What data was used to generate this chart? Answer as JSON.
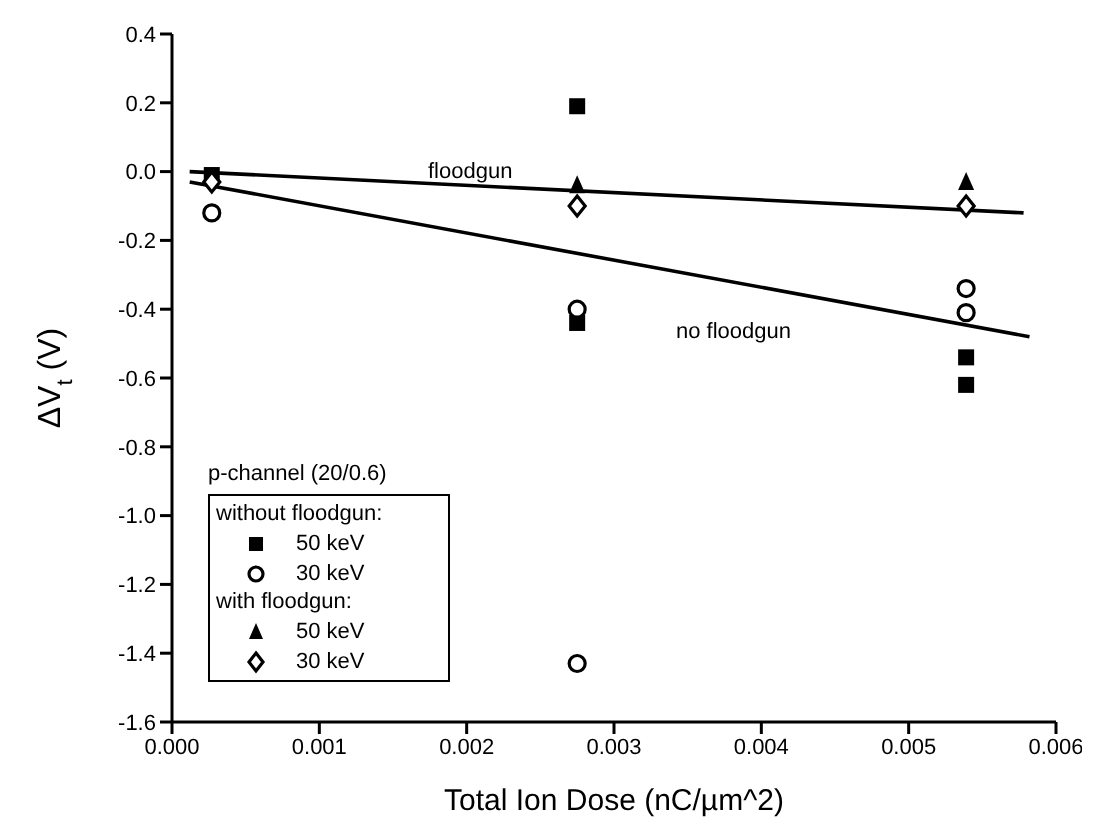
{
  "chart_data": {
    "type": "scatter",
    "xlabel": "Total Ion Dose (nC/µm^2)",
    "ylabel": "ΔV$_{t}$ (V)",
    "legend_title": "p-channel (20/0.6)",
    "xlim": [
      0,
      0.006
    ],
    "xticks": [
      {
        "value": 0,
        "label": "0.000"
      },
      {
        "value": 0.001,
        "label": "0.001"
      },
      {
        "value": 0.002,
        "label": "0.002"
      },
      {
        "value": 0.003,
        "label": "0.003"
      },
      {
        "value": 0.004,
        "label": "0.004"
      },
      {
        "value": 0.005,
        "label": "0.005"
      },
      {
        "value": 0.006,
        "label": "0.006"
      }
    ],
    "ylim": [
      -1.6,
      0.4
    ],
    "yticks": [
      {
        "value": 0.4,
        "label": "0.4"
      },
      {
        "value": 0.2,
        "label": "0.2"
      },
      {
        "value": 0,
        "label": "0.0"
      },
      {
        "value": -0.2,
        "label": "-0.2"
      },
      {
        "value": -0.4,
        "label": "-0.4"
      },
      {
        "value": -0.6,
        "label": "-0.6"
      },
      {
        "value": -0.8,
        "label": "-0.8"
      },
      {
        "value": -1,
        "label": "-1.0"
      },
      {
        "value": -1.2,
        "label": "-1.2"
      },
      {
        "value": -1.4,
        "label": "-1.4"
      },
      {
        "value": -1.6,
        "label": "-1.6"
      }
    ],
    "grid": false,
    "legend": "bottom left",
    "series": [
      {
        "name": "50 keV",
        "color": "#000000",
        "marker": "square",
        "x": [
          0.00027,
          0.00275,
          0.00275,
          0.00539,
          0.00539
        ],
        "values": [
          -0.01,
          0.19,
          -0.44,
          -0.54,
          -0.62
        ]
      },
      {
        "name": "30 keV",
        "color": "#000000",
        "marker": "circle",
        "x": [
          0.00027,
          0.00275,
          0.00275,
          0.00539,
          0.00539
        ],
        "values": [
          -0.12,
          -0.4,
          -1.43,
          -0.34,
          -0.41
        ]
      },
      {
        "name": "50 keV",
        "color": "#000000",
        "marker": "triangle",
        "x": [
          0.00275,
          0.00539
        ],
        "values": [
          -0.04,
          -0.03
        ]
      },
      {
        "name": "30 keV",
        "color": "#000000",
        "marker": "diamond",
        "x": [
          0.00027,
          0.00275,
          0.00539
        ],
        "values": [
          -0.03,
          -0.1,
          -0.1
        ]
      },
      {
        "type": "line",
        "color": "#000000",
        "marker": "none",
        "x": [
          0.00012,
          0.00578
        ],
        "values": [
          0,
          -0.12
        ]
      },
      {
        "type": "line",
        "color": "#000000",
        "marker": "none",
        "x": [
          0.00012,
          0.00582
        ],
        "values": [
          -0.03,
          -0.48
        ]
      }
    ],
    "annotations": [
      "floodgun",
      "no floodgun",
      "without floodgun:",
      "with floodgun:"
    ]
  }
}
